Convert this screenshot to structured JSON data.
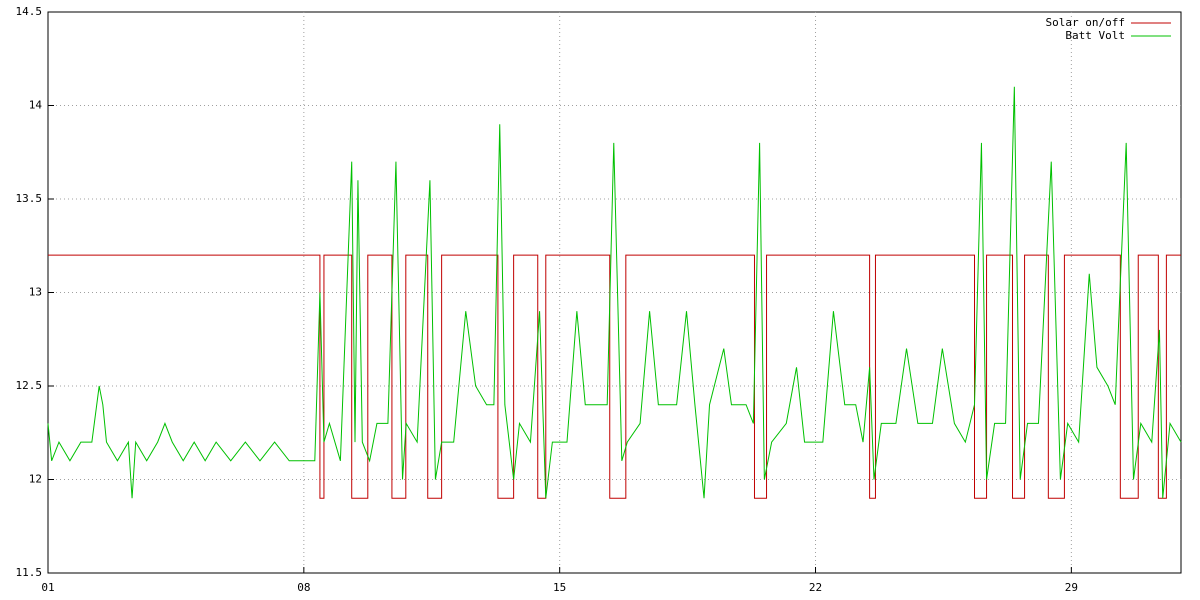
{
  "chart_data": {
    "type": "line",
    "xlim": [
      1,
      32
    ],
    "ylim": [
      11.5,
      14.5
    ],
    "xticks": [
      {
        "value": 1,
        "label": "01"
      },
      {
        "value": 8,
        "label": "08"
      },
      15,
      22,
      29
    ],
    "yticks": [
      11.5,
      12,
      12.5,
      13,
      13.5,
      14,
      14.5
    ],
    "grid": true,
    "legend": "top-right",
    "series": [
      {
        "name": "Solar on/off",
        "color": "#c00000",
        "x": [
          1,
          8.44,
          8.44,
          8.55,
          8.55,
          9.31,
          9.31,
          9.75,
          9.75,
          10.41,
          10.41,
          10.79,
          10.79,
          11.39,
          11.39,
          11.77,
          11.77,
          13.31,
          13.31,
          13.74,
          13.74,
          14.4,
          14.4,
          14.62,
          14.62,
          16.37,
          16.37,
          16.81,
          16.81,
          20.33,
          20.33,
          20.66,
          20.66,
          23.48,
          23.48,
          23.64,
          23.64,
          26.35,
          26.35,
          26.68,
          26.68,
          27.39,
          27.39,
          27.72,
          27.72,
          28.37,
          28.37,
          28.81,
          28.81,
          30.34,
          30.34,
          30.83,
          30.83,
          31.38,
          31.38,
          31.6,
          31.6,
          32
        ],
        "values": [
          13.2,
          13.2,
          11.9,
          11.9,
          13.2,
          13.2,
          11.9,
          11.9,
          13.2,
          13.2,
          11.9,
          11.9,
          13.2,
          13.2,
          11.9,
          11.9,
          13.2,
          13.2,
          11.9,
          11.9,
          13.2,
          13.2,
          11.9,
          11.9,
          13.2,
          13.2,
          11.9,
          11.9,
          13.2,
          13.2,
          11.9,
          11.9,
          13.2,
          13.2,
          11.9,
          11.9,
          13.2,
          13.2,
          11.9,
          11.9,
          13.2,
          13.2,
          11.9,
          11.9,
          13.2,
          13.2,
          11.9,
          11.9,
          13.2,
          13.2,
          11.9,
          11.9,
          13.2,
          13.2,
          11.9,
          11.9,
          13.2,
          13.2
        ]
      },
      {
        "name": "Batt Volt",
        "color": "#00c000",
        "x": [
          1.0,
          1.1,
          1.3,
          1.6,
          1.9,
          2.2,
          2.4,
          2.5,
          2.6,
          2.9,
          3.2,
          3.3,
          3.4,
          3.7,
          4.0,
          4.2,
          4.4,
          4.7,
          5.0,
          5.3,
          5.6,
          6.0,
          6.4,
          6.8,
          7.2,
          7.6,
          8.3,
          8.44,
          8.55,
          8.7,
          9.0,
          9.31,
          9.4,
          9.48,
          9.6,
          9.8,
          10.0,
          10.3,
          10.52,
          10.7,
          10.8,
          11.1,
          11.45,
          11.6,
          11.77,
          12.1,
          12.43,
          12.7,
          13.0,
          13.2,
          13.36,
          13.5,
          13.74,
          13.9,
          14.2,
          14.45,
          14.62,
          14.8,
          15.2,
          15.47,
          15.7,
          16.0,
          16.3,
          16.48,
          16.7,
          16.85,
          17.2,
          17.46,
          17.7,
          18.0,
          18.2,
          18.47,
          18.7,
          18.95,
          19.1,
          19.49,
          19.7,
          20.1,
          20.3,
          20.47,
          20.6,
          20.8,
          21.2,
          21.48,
          21.7,
          22.2,
          22.49,
          22.8,
          23.1,
          23.3,
          23.48,
          23.6,
          23.8,
          24.2,
          24.49,
          24.8,
          25.2,
          25.47,
          25.8,
          26.1,
          26.35,
          26.54,
          26.68,
          26.9,
          27.2,
          27.44,
          27.6,
          27.8,
          28.1,
          28.45,
          28.7,
          28.9,
          29.2,
          29.49,
          29.7,
          30.0,
          30.2,
          30.5,
          30.7,
          30.9,
          31.2,
          31.41,
          31.5,
          31.7,
          32.0
        ],
        "values": [
          12.3,
          12.1,
          12.2,
          12.1,
          12.2,
          12.2,
          12.5,
          12.4,
          12.2,
          12.1,
          12.2,
          11.9,
          12.2,
          12.1,
          12.2,
          12.3,
          12.2,
          12.1,
          12.2,
          12.1,
          12.2,
          12.1,
          12.2,
          12.1,
          12.2,
          12.1,
          12.1,
          13.0,
          12.2,
          12.3,
          12.1,
          13.7,
          12.2,
          13.6,
          12.2,
          12.1,
          12.3,
          12.3,
          13.7,
          12.0,
          12.3,
          12.2,
          13.6,
          12.0,
          12.2,
          12.2,
          12.9,
          12.5,
          12.4,
          12.4,
          13.9,
          12.4,
          12.0,
          12.3,
          12.2,
          12.9,
          11.9,
          12.2,
          12.2,
          12.9,
          12.4,
          12.4,
          12.4,
          13.8,
          12.1,
          12.2,
          12.3,
          12.9,
          12.4,
          12.4,
          12.4,
          12.9,
          12.4,
          11.9,
          12.4,
          12.7,
          12.4,
          12.4,
          12.3,
          13.8,
          12.0,
          12.2,
          12.3,
          12.6,
          12.2,
          12.2,
          12.9,
          12.4,
          12.4,
          12.2,
          12.6,
          12.0,
          12.3,
          12.3,
          12.7,
          12.3,
          12.3,
          12.7,
          12.3,
          12.2,
          12.4,
          13.8,
          12.0,
          12.3,
          12.3,
          14.1,
          12.0,
          12.3,
          12.3,
          13.7,
          12.0,
          12.3,
          12.2,
          13.1,
          12.6,
          12.5,
          12.4,
          13.8,
          12.0,
          12.3,
          12.2,
          12.8,
          11.9,
          12.3,
          12.2
        ]
      }
    ]
  }
}
